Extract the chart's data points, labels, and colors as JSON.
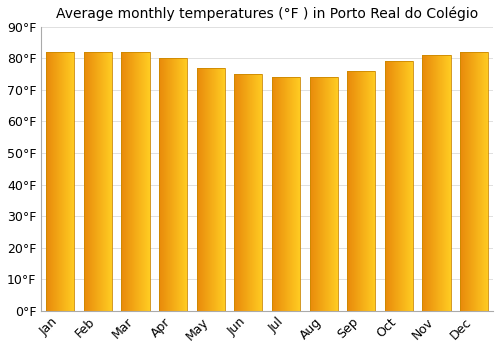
{
  "title": "Average monthly temperatures (°F ) in Porto Real do Colégio",
  "months": [
    "Jan",
    "Feb",
    "Mar",
    "Apr",
    "May",
    "Jun",
    "Jul",
    "Aug",
    "Sep",
    "Oct",
    "Nov",
    "Dec"
  ],
  "values": [
    82,
    82,
    82,
    80,
    77,
    75,
    74,
    74,
    76,
    79,
    81,
    82
  ],
  "ylim": [
    0,
    90
  ],
  "yticks": [
    0,
    10,
    20,
    30,
    40,
    50,
    60,
    70,
    80,
    90
  ],
  "ytick_labels": [
    "0°F",
    "10°F",
    "20°F",
    "30°F",
    "40°F",
    "50°F",
    "60°F",
    "70°F",
    "80°F",
    "90°F"
  ],
  "bar_color_left": "#E8890A",
  "bar_color_right": "#FFCC22",
  "bar_edge_color": "#CC8800",
  "background_color": "#ffffff",
  "grid_color": "#e0e0e0",
  "title_fontsize": 10,
  "tick_fontsize": 9,
  "bar_width": 0.75,
  "n_bands": 80
}
